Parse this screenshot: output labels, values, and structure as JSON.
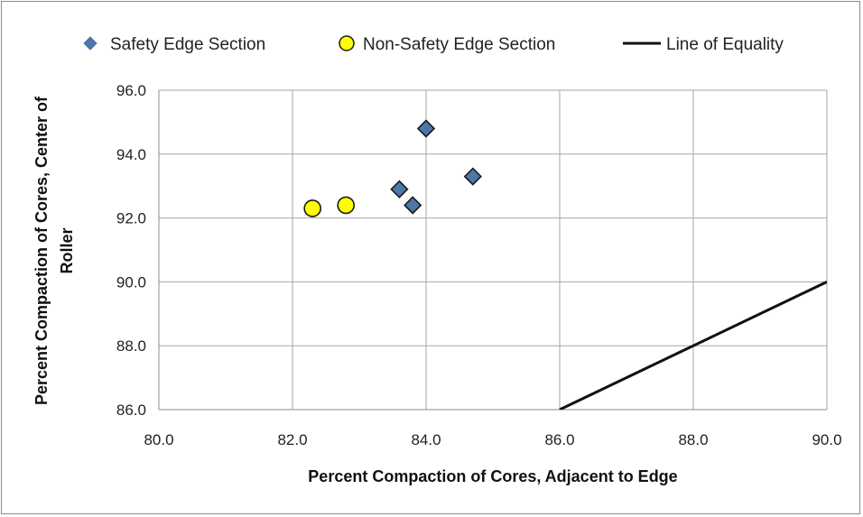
{
  "chart_data": {
    "type": "scatter",
    "title": "",
    "xlabel": "Percent Compaction of Cores, Adjacent to Edge",
    "ylabel": "Percent Compaction of Cores, Center of Roller",
    "xlim": [
      80,
      90
    ],
    "ylim": [
      86,
      96
    ],
    "x_ticks": [
      "80.0",
      "82.0",
      "84.0",
      "86.0",
      "88.0",
      "90.0"
    ],
    "y_ticks": [
      "86.0",
      "88.0",
      "90.0",
      "92.0",
      "94.0",
      "96.0"
    ],
    "grid": true,
    "legend_position": "top",
    "series": [
      {
        "name": "Safety Edge Section",
        "marker": "diamond",
        "color": "#4f76a8",
        "edge_color": "#1a1a1a",
        "points": [
          [
            83.6,
            92.9
          ],
          [
            83.8,
            92.4
          ],
          [
            84.0,
            94.8
          ],
          [
            84.7,
            93.3
          ]
        ]
      },
      {
        "name": "Non-Safety Edge Section",
        "marker": "circle",
        "color": "#ffff00",
        "edge_color": "#1a1a1a",
        "points": [
          [
            82.3,
            92.3
          ],
          [
            82.8,
            92.4
          ]
        ]
      },
      {
        "name": "Line of Equality",
        "marker": "line",
        "color": "#111111",
        "points": [
          [
            86.0,
            86.0
          ],
          [
            90.0,
            90.0
          ]
        ]
      }
    ]
  }
}
